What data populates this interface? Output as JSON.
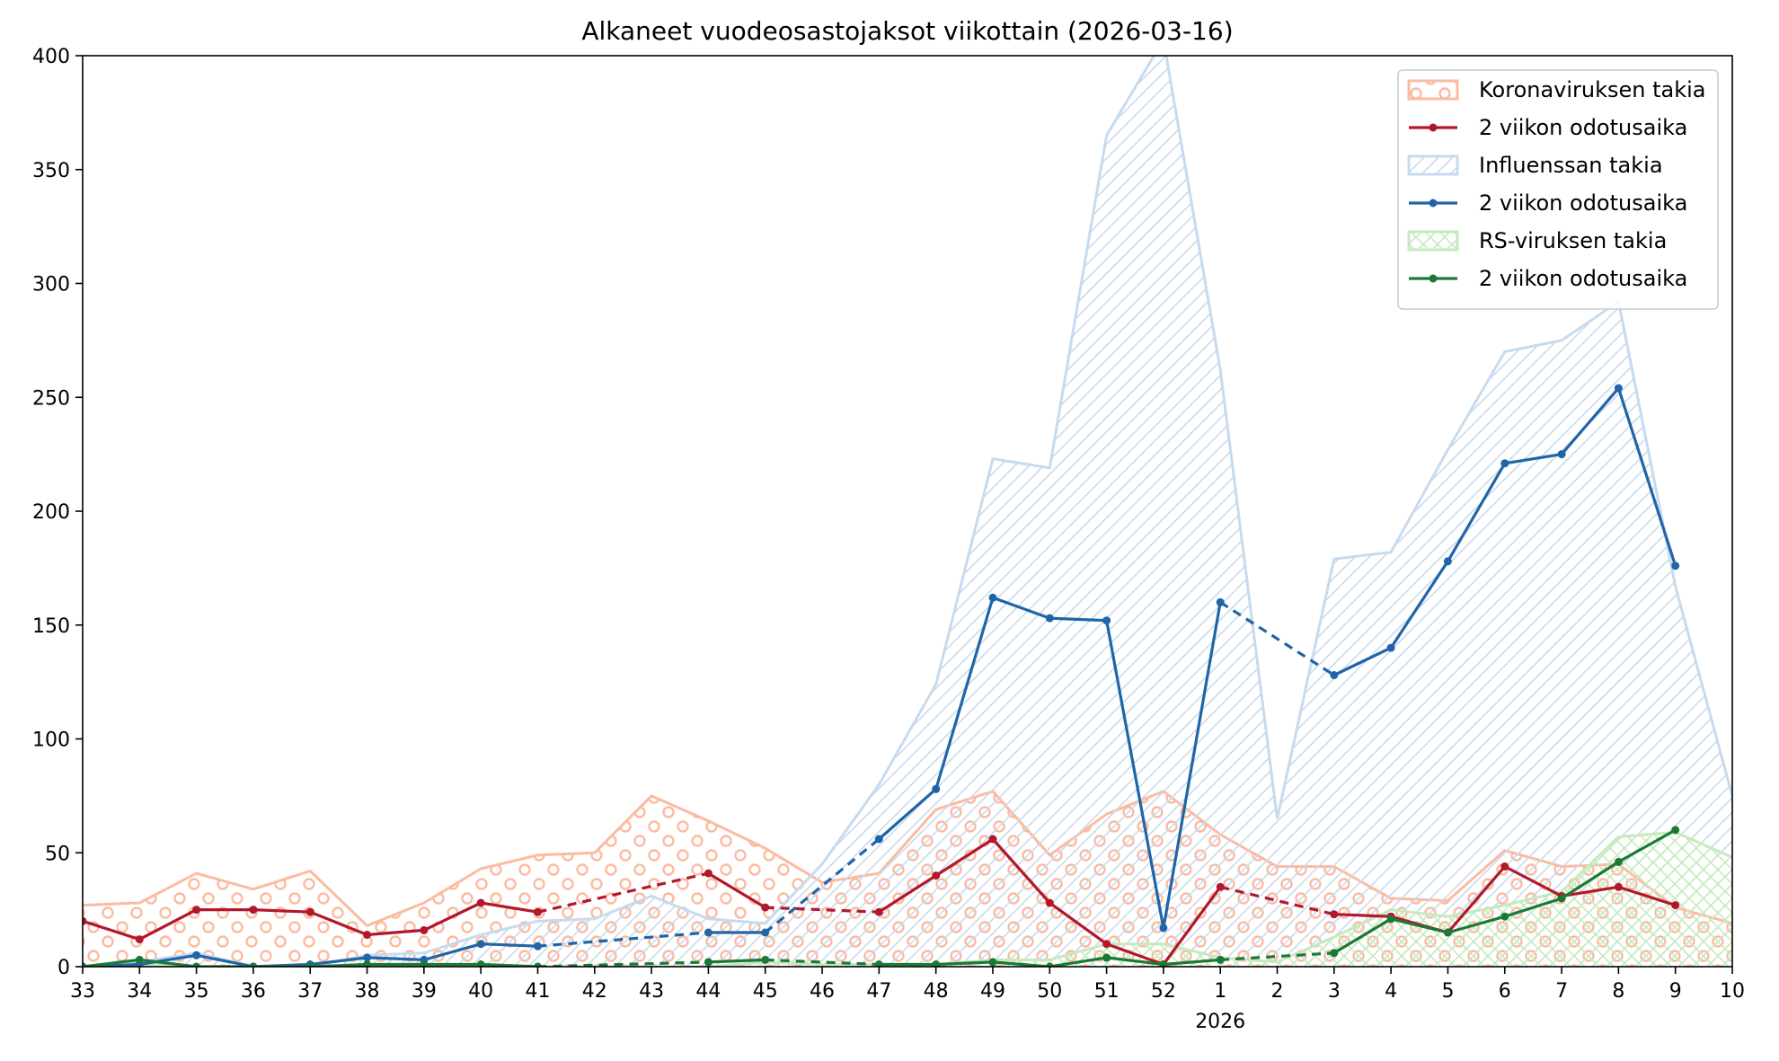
{
  "chart_data": {
    "type": "line",
    "title": "Alkaneet vuodeosastojaksot viikottain (2026-03-16)",
    "xlabel": "",
    "ylabel": "",
    "ylim": [
      0,
      400
    ],
    "y_ticks": [
      0,
      50,
      100,
      150,
      200,
      250,
      300,
      350,
      400
    ],
    "x_year_label": "2026",
    "grid": false,
    "legend_position": "top-right",
    "categories": [
      "33",
      "34",
      "35",
      "36",
      "37",
      "38",
      "39",
      "40",
      "41",
      "42",
      "43",
      "44",
      "45",
      "46",
      "47",
      "48",
      "49",
      "50",
      "51",
      "52",
      "1",
      "2",
      "3",
      "4",
      "5",
      "6",
      "7",
      "8",
      "9",
      "10"
    ],
    "areas": [
      {
        "name": "Koronaviruksen takia",
        "color": "#fcbba1",
        "pattern": "circles",
        "values": [
          27,
          28,
          41,
          34,
          42,
          18,
          28,
          43,
          49,
          50,
          75,
          64,
          52,
          37,
          41,
          69,
          77,
          49,
          67,
          77,
          58,
          44,
          44,
          30,
          29,
          51,
          44,
          45,
          26,
          19
        ]
      },
      {
        "name": "Influenssan takia",
        "color": "#c6dbef",
        "pattern": "diagonal",
        "values": [
          0,
          2,
          6,
          0,
          0,
          5,
          6,
          14,
          20,
          21,
          31,
          21,
          19,
          45,
          80,
          124,
          223,
          219,
          365,
          407,
          262,
          65,
          179,
          182,
          227,
          270,
          275,
          292,
          167,
          75
        ]
      },
      {
        "name": "RS-viruksen takia",
        "color": "#c7e9c0",
        "pattern": "crosshatch",
        "values": [
          0,
          1,
          0,
          0,
          0,
          0,
          0,
          0,
          0,
          0,
          0,
          0,
          2,
          1,
          1,
          1,
          3,
          3,
          10,
          10,
          4,
          2,
          13,
          25,
          22,
          27,
          33,
          57,
          59,
          48
        ]
      }
    ],
    "lines": [
      {
        "name": "2 viikon odotusaika",
        "color": "#b2182b",
        "values": [
          20,
          12,
          25,
          25,
          24,
          14,
          16,
          28,
          24,
          null,
          null,
          41,
          26,
          null,
          24,
          40,
          56,
          28,
          10,
          1,
          35,
          null,
          23,
          22,
          15,
          44,
          31,
          35,
          27,
          null
        ]
      },
      {
        "name": "2 viikon odotusaika",
        "color": "#1f65a8",
        "values": [
          0,
          1,
          5,
          0,
          1,
          4,
          3,
          10,
          9,
          null,
          null,
          15,
          15,
          null,
          56,
          78,
          162,
          153,
          152,
          17,
          160,
          null,
          128,
          140,
          178,
          221,
          225,
          254,
          176,
          null
        ]
      },
      {
        "name": "2 viikon odotusaika",
        "color": "#1a7a35",
        "values": [
          0,
          3,
          0,
          0,
          0,
          1,
          1,
          1,
          0,
          null,
          null,
          2,
          3,
          null,
          1,
          1,
          2,
          0,
          4,
          1,
          3,
          null,
          6,
          21,
          15,
          22,
          30,
          46,
          60,
          null
        ]
      }
    ],
    "legend": [
      {
        "label": "Koronaviruksen takia",
        "kind": "area",
        "color": "#fcbba1",
        "pattern": "circles"
      },
      {
        "label": "2 viikon odotusaika",
        "kind": "line",
        "color": "#b2182b"
      },
      {
        "label": "Influenssan takia",
        "kind": "area",
        "color": "#c6dbef",
        "pattern": "diagonal"
      },
      {
        "label": "2 viikon odotusaika",
        "kind": "line",
        "color": "#1f65a8"
      },
      {
        "label": "RS-viruksen takia",
        "kind": "area",
        "color": "#c7e9c0",
        "pattern": "crosshatch"
      },
      {
        "label": "2 viikon odotusaika",
        "kind": "line",
        "color": "#1a7a35"
      }
    ]
  }
}
